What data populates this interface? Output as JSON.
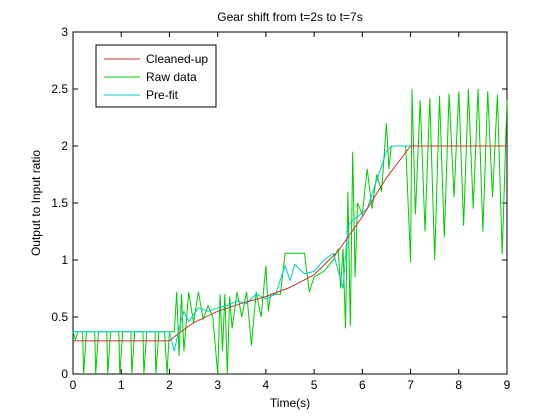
{
  "chart_data": {
    "type": "line",
    "title": "Gear shift from t=2s to t=7s",
    "xlabel": "Time(s)",
    "ylabel": "Output to Input ratio",
    "xlim": [
      0,
      9
    ],
    "ylim": [
      0,
      3
    ],
    "xticks": [
      "0",
      "1",
      "2",
      "3",
      "4",
      "5",
      "6",
      "7",
      "8",
      "9"
    ],
    "yticks": [
      "0",
      "0.5",
      "1",
      "1.5",
      "2",
      "2.5",
      "3"
    ],
    "grid": false,
    "legend_position": "top-left",
    "series": [
      {
        "name": "Cleaned-up",
        "color": "#c0392b",
        "points": [
          [
            0,
            0.29
          ],
          [
            2.0,
            0.29
          ],
          [
            2.2,
            0.36
          ],
          [
            2.5,
            0.45
          ],
          [
            3.0,
            0.55
          ],
          [
            3.5,
            0.62
          ],
          [
            4.0,
            0.68
          ],
          [
            4.5,
            0.76
          ],
          [
            5.0,
            0.87
          ],
          [
            5.5,
            1.08
          ],
          [
            6.0,
            1.38
          ],
          [
            6.5,
            1.72
          ],
          [
            7.0,
            2.0
          ],
          [
            9.0,
            2.0
          ]
        ]
      },
      {
        "name": "Raw data",
        "color": "#00cc00",
        "points": [
          [
            0,
            0.37
          ],
          [
            0.05,
            0.3
          ],
          [
            0.1,
            0.37
          ],
          [
            0.2,
            0.37
          ],
          [
            0.22,
            0.0
          ],
          [
            0.28,
            0.37
          ],
          [
            0.45,
            0.37
          ],
          [
            0.47,
            0.0
          ],
          [
            0.53,
            0.37
          ],
          [
            0.7,
            0.37
          ],
          [
            0.72,
            0.0
          ],
          [
            0.78,
            0.37
          ],
          [
            0.95,
            0.37
          ],
          [
            0.97,
            0.0
          ],
          [
            1.03,
            0.37
          ],
          [
            1.2,
            0.37
          ],
          [
            1.22,
            0.0
          ],
          [
            1.28,
            0.37
          ],
          [
            1.45,
            0.37
          ],
          [
            1.47,
            0.0
          ],
          [
            1.53,
            0.37
          ],
          [
            1.7,
            0.37
          ],
          [
            1.72,
            0.0
          ],
          [
            1.78,
            0.37
          ],
          [
            1.9,
            0.37
          ],
          [
            1.95,
            0.0
          ],
          [
            2.0,
            0.37
          ],
          [
            2.1,
            0.37
          ],
          [
            2.15,
            0.72
          ],
          [
            2.2,
            0.16
          ],
          [
            2.25,
            0.7
          ],
          [
            2.3,
            0.2
          ],
          [
            2.4,
            0.72
          ],
          [
            2.5,
            0.45
          ],
          [
            2.6,
            0.72
          ],
          [
            2.7,
            0.48
          ],
          [
            2.8,
            0.6
          ],
          [
            2.9,
            0.5
          ],
          [
            3.0,
            0.0
          ],
          [
            3.05,
            0.7
          ],
          [
            3.1,
            0.2
          ],
          [
            3.15,
            0.7
          ],
          [
            3.2,
            0.0
          ],
          [
            3.25,
            0.68
          ],
          [
            3.3,
            0.4
          ],
          [
            3.4,
            0.72
          ],
          [
            3.5,
            0.5
          ],
          [
            3.6,
            0.72
          ],
          [
            3.7,
            0.25
          ],
          [
            3.8,
            0.72
          ],
          [
            3.9,
            0.5
          ],
          [
            4.0,
            0.95
          ],
          [
            4.05,
            0.55
          ],
          [
            4.1,
            0.7
          ],
          [
            4.3,
            0.7
          ],
          [
            4.4,
            1.06
          ],
          [
            4.8,
            1.06
          ],
          [
            4.9,
            0.72
          ],
          [
            5.0,
            0.85
          ],
          [
            5.2,
            0.9
          ],
          [
            5.4,
            1.0
          ],
          [
            5.5,
            1.1
          ],
          [
            5.55,
            0.75
          ],
          [
            5.6,
            1.1
          ],
          [
            5.65,
            0.4
          ],
          [
            5.7,
            1.6
          ],
          [
            5.75,
            0.42
          ],
          [
            5.8,
            1.95
          ],
          [
            5.85,
            0.85
          ],
          [
            5.9,
            1.5
          ],
          [
            6.0,
            1.4
          ],
          [
            6.1,
            1.8
          ],
          [
            6.2,
            1.45
          ],
          [
            6.3,
            1.75
          ],
          [
            6.4,
            1.6
          ],
          [
            6.5,
            2.2
          ],
          [
            6.55,
            1.8
          ],
          [
            6.6,
            2.0
          ],
          [
            6.9,
            2.0
          ],
          [
            7.0,
            0.98
          ],
          [
            7.03,
            2.5
          ],
          [
            7.1,
            1.4
          ],
          [
            7.2,
            2.4
          ],
          [
            7.3,
            1.25
          ],
          [
            7.4,
            2.42
          ],
          [
            7.5,
            1.0
          ],
          [
            7.6,
            2.44
          ],
          [
            7.7,
            1.2
          ],
          [
            7.8,
            2.46
          ],
          [
            7.9,
            1.55
          ],
          [
            8.0,
            2.48
          ],
          [
            8.1,
            1.3
          ],
          [
            8.2,
            2.5
          ],
          [
            8.3,
            1.45
          ],
          [
            8.4,
            2.5
          ],
          [
            8.5,
            1.25
          ],
          [
            8.6,
            2.48
          ],
          [
            8.7,
            1.55
          ],
          [
            8.8,
            2.45
          ],
          [
            8.9,
            1.05
          ],
          [
            9.0,
            2.4
          ]
        ]
      },
      {
        "name": "Pre-fit",
        "color": "#00cccc",
        "points": [
          [
            0,
            0.37
          ],
          [
            2.0,
            0.37
          ],
          [
            2.1,
            0.2
          ],
          [
            2.2,
            0.4
          ],
          [
            2.3,
            0.55
          ],
          [
            2.4,
            0.46
          ],
          [
            2.6,
            0.58
          ],
          [
            2.8,
            0.55
          ],
          [
            3.0,
            0.58
          ],
          [
            3.2,
            0.6
          ],
          [
            3.4,
            0.64
          ],
          [
            3.6,
            0.62
          ],
          [
            3.8,
            0.7
          ],
          [
            4.0,
            0.66
          ],
          [
            4.2,
            0.7
          ],
          [
            4.4,
            0.95
          ],
          [
            4.5,
            0.82
          ],
          [
            4.6,
            0.96
          ],
          [
            4.8,
            0.88
          ],
          [
            5.0,
            0.9
          ],
          [
            5.2,
            1.0
          ],
          [
            5.4,
            1.06
          ],
          [
            5.6,
            0.75
          ],
          [
            5.7,
            1.3
          ],
          [
            5.8,
            1.35
          ],
          [
            5.9,
            1.38
          ],
          [
            6.1,
            1.45
          ],
          [
            6.3,
            1.7
          ],
          [
            6.5,
            1.95
          ],
          [
            6.6,
            2.0
          ],
          [
            6.9,
            2.0
          ],
          [
            7.0,
            2.0
          ]
        ]
      }
    ]
  }
}
